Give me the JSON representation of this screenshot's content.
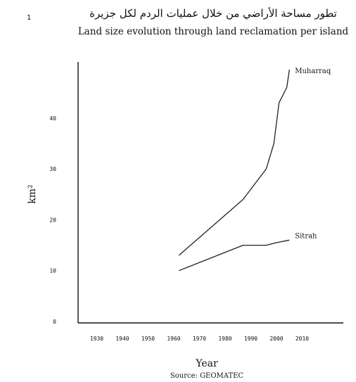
{
  "page": {
    "corner_mark": "1"
  },
  "chart_data": {
    "type": "line",
    "title_ar": "تطور مساحة الأراضي من خلال عمليات الردم لكل جزيرة",
    "title": "Land size evolution through land reclamation per island",
    "xlabel": "Year",
    "ylabel": "km²",
    "source": "Source: GEOMATEC",
    "xlim": [
      1920,
      2010
    ],
    "ylim": [
      0,
      50
    ],
    "xticks": [
      1930,
      1940,
      1950,
      1960,
      1970,
      1980,
      1990,
      2000,
      2010
    ],
    "yticks": [
      0,
      10,
      20,
      30,
      40
    ],
    "grid": false,
    "legend": "inline labels at line ends",
    "colors": {
      "line": "#222222",
      "axis": "#111111",
      "text": "#111111"
    },
    "series": [
      {
        "name": "Muharraq",
        "points": [
          [
            1962,
            13
          ],
          [
            1987,
            24
          ],
          [
            1996,
            30
          ],
          [
            1999,
            35
          ],
          [
            2001,
            43
          ],
          [
            2004,
            46
          ],
          [
            2005,
            49.5
          ]
        ]
      },
      {
        "name": "Sitrah",
        "points": [
          [
            1962,
            10
          ],
          [
            1987,
            15
          ],
          [
            1996,
            15
          ],
          [
            2000,
            15.5
          ],
          [
            2005,
            16
          ]
        ]
      }
    ]
  }
}
